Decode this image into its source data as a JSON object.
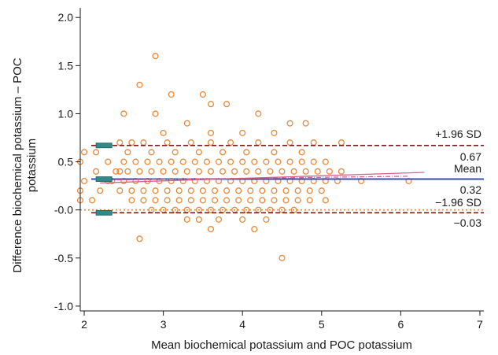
{
  "chart_data": {
    "type": "scatter",
    "xlabel": "Mean biochemical potassium and POC potassium",
    "ylabel_lines": [
      "Difference biochemical potassium – POC",
      "potassium"
    ],
    "xlim": [
      1.95,
      7.05
    ],
    "ylim": [
      -1.05,
      2.1
    ],
    "x_ticks": [
      2,
      3,
      4,
      5,
      6,
      7
    ],
    "y_ticks": [
      {
        "value": 2.0,
        "label": "2.0"
      },
      {
        "value": 1.5,
        "label": "1.5"
      },
      {
        "value": 1.0,
        "label": "1.0"
      },
      {
        "value": 0.5,
        "label": "0.5"
      },
      {
        "value": 0.0,
        "label": "-0.0"
      },
      {
        "value": -0.5,
        "label": "-0.5"
      },
      {
        "value": -1.0,
        "label": "-1.0"
      }
    ],
    "mean": 0.32,
    "upper_loa": 0.67,
    "lower_loa": -0.03,
    "annotations": {
      "upper_title": "+1.96 SD",
      "upper_value": "0.67",
      "mean_title": "Mean",
      "mean_value": "0.32",
      "lower_title": "−1.96 SD",
      "lower_value": "−0.03"
    },
    "colors": {
      "points": "#e8893a",
      "mean_line": "#3a4bb0",
      "loa_line": "#7a1a1a",
      "zero_line": "#e8893a",
      "regression": "#d9608a",
      "ci_markers": "#2f8a8a"
    },
    "points": [
      [
        2.9,
        1.6
      ],
      [
        2.7,
        1.3
      ],
      [
        3.1,
        1.2
      ],
      [
        3.5,
        1.2
      ],
      [
        3.6,
        1.1
      ],
      [
        3.8,
        1.1
      ],
      [
        2.5,
        1.0
      ],
      [
        2.9,
        1.0
      ],
      [
        4.2,
        1.0
      ],
      [
        3.3,
        0.9
      ],
      [
        4.6,
        0.9
      ],
      [
        4.8,
        0.9
      ],
      [
        4.0,
        0.8
      ],
      [
        3.0,
        0.8
      ],
      [
        3.6,
        0.8
      ],
      [
        4.4,
        0.8
      ],
      [
        2.0,
        0.6
      ],
      [
        2.15,
        0.6
      ],
      [
        1.95,
        0.5
      ],
      [
        2.3,
        0.5
      ],
      [
        2.15,
        0.4
      ],
      [
        2.0,
        0.3
      ],
      [
        1.95,
        0.2
      ],
      [
        1.95,
        0.1
      ],
      [
        2.1,
        0.1
      ],
      [
        2.2,
        0.2
      ],
      [
        2.3,
        0.3
      ],
      [
        2.45,
        0.4
      ],
      [
        2.45,
        0.7
      ],
      [
        2.6,
        0.7
      ],
      [
        2.75,
        0.7
      ],
      [
        3.05,
        0.7
      ],
      [
        3.35,
        0.7
      ],
      [
        3.6,
        0.7
      ],
      [
        3.85,
        0.7
      ],
      [
        4.2,
        0.7
      ],
      [
        4.6,
        0.7
      ],
      [
        4.9,
        0.7
      ],
      [
        5.25,
        0.7
      ],
      [
        2.55,
        0.6
      ],
      [
        2.85,
        0.6
      ],
      [
        3.15,
        0.6
      ],
      [
        3.45,
        0.6
      ],
      [
        3.75,
        0.6
      ],
      [
        4.05,
        0.6
      ],
      [
        4.4,
        0.6
      ],
      [
        4.75,
        0.6
      ],
      [
        2.5,
        0.5
      ],
      [
        2.65,
        0.5
      ],
      [
        2.8,
        0.5
      ],
      [
        2.95,
        0.5
      ],
      [
        3.1,
        0.5
      ],
      [
        3.25,
        0.5
      ],
      [
        3.4,
        0.5
      ],
      [
        3.55,
        0.5
      ],
      [
        3.7,
        0.5
      ],
      [
        3.85,
        0.5
      ],
      [
        4.0,
        0.5
      ],
      [
        4.15,
        0.5
      ],
      [
        4.3,
        0.5
      ],
      [
        4.45,
        0.5
      ],
      [
        4.6,
        0.5
      ],
      [
        4.75,
        0.5
      ],
      [
        4.9,
        0.5
      ],
      [
        5.05,
        0.5
      ],
      [
        2.4,
        0.4
      ],
      [
        2.55,
        0.4
      ],
      [
        2.7,
        0.4
      ],
      [
        2.85,
        0.4
      ],
      [
        3.0,
        0.4
      ],
      [
        3.15,
        0.4
      ],
      [
        3.3,
        0.4
      ],
      [
        3.45,
        0.4
      ],
      [
        3.6,
        0.4
      ],
      [
        3.75,
        0.4
      ],
      [
        3.9,
        0.4
      ],
      [
        4.05,
        0.4
      ],
      [
        4.2,
        0.4
      ],
      [
        4.35,
        0.4
      ],
      [
        4.5,
        0.4
      ],
      [
        4.65,
        0.4
      ],
      [
        4.8,
        0.4
      ],
      [
        4.95,
        0.4
      ],
      [
        5.1,
        0.4
      ],
      [
        5.25,
        0.4
      ],
      [
        2.35,
        0.3
      ],
      [
        2.5,
        0.3
      ],
      [
        2.65,
        0.3
      ],
      [
        2.8,
        0.3
      ],
      [
        2.95,
        0.3
      ],
      [
        3.1,
        0.3
      ],
      [
        3.25,
        0.3
      ],
      [
        3.4,
        0.3
      ],
      [
        3.55,
        0.3
      ],
      [
        3.7,
        0.3
      ],
      [
        3.85,
        0.3
      ],
      [
        4.0,
        0.3
      ],
      [
        4.15,
        0.3
      ],
      [
        4.3,
        0.3
      ],
      [
        4.45,
        0.3
      ],
      [
        4.6,
        0.3
      ],
      [
        4.75,
        0.3
      ],
      [
        4.9,
        0.3
      ],
      [
        5.05,
        0.3
      ],
      [
        5.2,
        0.3
      ],
      [
        5.5,
        0.3
      ],
      [
        6.1,
        0.3
      ],
      [
        2.45,
        0.2
      ],
      [
        2.6,
        0.2
      ],
      [
        2.75,
        0.2
      ],
      [
        2.9,
        0.2
      ],
      [
        3.05,
        0.2
      ],
      [
        3.2,
        0.2
      ],
      [
        3.35,
        0.2
      ],
      [
        3.5,
        0.2
      ],
      [
        3.65,
        0.2
      ],
      [
        3.8,
        0.2
      ],
      [
        3.95,
        0.2
      ],
      [
        4.1,
        0.2
      ],
      [
        4.25,
        0.2
      ],
      [
        4.4,
        0.2
      ],
      [
        4.55,
        0.2
      ],
      [
        4.7,
        0.2
      ],
      [
        4.85,
        0.2
      ],
      [
        5.0,
        0.2
      ],
      [
        2.6,
        0.1
      ],
      [
        2.75,
        0.1
      ],
      [
        2.9,
        0.1
      ],
      [
        3.05,
        0.1
      ],
      [
        3.2,
        0.1
      ],
      [
        3.35,
        0.1
      ],
      [
        3.5,
        0.1
      ],
      [
        3.65,
        0.1
      ],
      [
        3.8,
        0.1
      ],
      [
        3.95,
        0.1
      ],
      [
        4.1,
        0.1
      ],
      [
        4.25,
        0.1
      ],
      [
        4.4,
        0.1
      ],
      [
        4.55,
        0.1
      ],
      [
        4.7,
        0.1
      ],
      [
        4.85,
        0.1
      ],
      [
        5.05,
        0.1
      ],
      [
        2.85,
        0.0
      ],
      [
        3.0,
        0.0
      ],
      [
        3.15,
        0.0
      ],
      [
        3.3,
        0.0
      ],
      [
        3.45,
        0.0
      ],
      [
        3.6,
        0.0
      ],
      [
        3.75,
        0.0
      ],
      [
        3.9,
        0.0
      ],
      [
        4.05,
        0.0
      ],
      [
        4.2,
        0.0
      ],
      [
        4.35,
        0.0
      ],
      [
        4.5,
        0.0
      ],
      [
        4.65,
        0.0
      ],
      [
        3.3,
        -0.1
      ],
      [
        3.45,
        -0.1
      ],
      [
        3.7,
        -0.1
      ],
      [
        4.0,
        -0.1
      ],
      [
        4.3,
        -0.1
      ],
      [
        3.6,
        -0.2
      ],
      [
        4.15,
        -0.2
      ],
      [
        2.7,
        -0.3
      ],
      [
        4.5,
        -0.5
      ]
    ],
    "regression_lines": [
      [
        [
          2.2,
          0.28
        ],
        [
          6.3,
          0.39
        ]
      ],
      [
        [
          2.2,
          0.31
        ],
        [
          6.1,
          0.35
        ]
      ]
    ],
    "loa_ci_markers": [
      {
        "x": [
          2.15,
          2.35
        ],
        "y": 0.67
      },
      {
        "x": [
          2.15,
          2.35
        ],
        "y": 0.32
      },
      {
        "x": [
          2.15,
          2.35
        ],
        "y": -0.03
      }
    ]
  }
}
